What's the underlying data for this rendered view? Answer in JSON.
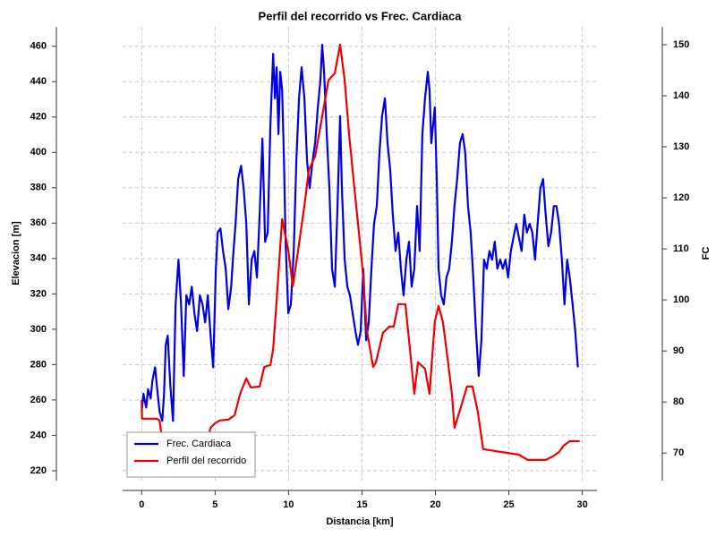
{
  "chart_data": {
    "type": "line",
    "title": "Perfil del recorrido vs Frec. Cardiaca",
    "xlabel": "Distancia [km]",
    "ylabel": "Elevacion [m]",
    "y2label": "FC",
    "xlim": [
      -1.3,
      31
    ],
    "xticks": [
      0,
      5,
      10,
      15,
      20,
      25,
      30
    ],
    "ylim": [
      214.4,
      471
    ],
    "yticks": [
      220,
      240,
      260,
      280,
      300,
      320,
      340,
      360,
      380,
      400,
      420,
      440,
      460
    ],
    "y2lim": [
      64.6,
      153.5
    ],
    "y2ticks": [
      70,
      80,
      90,
      100,
      110,
      120,
      130,
      140,
      150
    ],
    "grid": true,
    "legend": "lower left",
    "series": [
      {
        "name": "Frec. Cardiaca",
        "color": "#0000e0",
        "axis": "y2",
        "x": [
          0,
          0.12,
          0.3,
          0.43,
          0.61,
          0.73,
          0.91,
          1.03,
          1.22,
          1.4,
          1.52,
          1.64,
          1.77,
          1.95,
          2.13,
          2.31,
          2.5,
          2.68,
          2.86,
          3.04,
          3.23,
          3.41,
          3.59,
          3.77,
          3.96,
          4.14,
          4.32,
          4.5,
          4.69,
          4.87,
          5.05,
          5.17,
          5.36,
          5.54,
          5.72,
          5.9,
          6.09,
          6.21,
          6.39,
          6.57,
          6.76,
          6.94,
          7.12,
          7.3,
          7.49,
          7.67,
          7.85,
          8.03,
          8.22,
          8.4,
          8.58,
          8.76,
          8.95,
          9.07,
          9.19,
          9.31,
          9.43,
          9.56,
          9.68,
          9.8,
          9.98,
          10.16,
          10.35,
          10.53,
          10.71,
          10.89,
          11.08,
          11.26,
          11.44,
          11.63,
          11.81,
          11.99,
          12.17,
          12.29,
          12.42,
          12.6,
          12.78,
          12.96,
          13.15,
          13.33,
          13.51,
          13.63,
          13.82,
          14,
          14.18,
          14.36,
          14.55,
          14.73,
          14.91,
          15.09,
          15.28,
          15.46,
          15.64,
          15.82,
          16.01,
          16.19,
          16.37,
          16.56,
          16.74,
          16.92,
          17.1,
          17.29,
          17.47,
          17.65,
          17.83,
          18.02,
          18.2,
          18.38,
          18.56,
          18.75,
          18.93,
          19.11,
          19.29,
          19.48,
          19.6,
          19.72,
          19.84,
          19.96,
          20.09,
          20.21,
          20.39,
          20.57,
          20.75,
          20.94,
          21.12,
          21.3,
          21.48,
          21.67,
          21.85,
          22.03,
          22.22,
          22.4,
          22.58,
          22.76,
          22.95,
          23.13,
          23.31,
          23.49,
          23.68,
          23.86,
          24.04,
          24.22,
          24.41,
          24.59,
          24.77,
          24.95,
          25.14,
          25.32,
          25.5,
          25.68,
          25.87,
          26.05,
          26.23,
          26.42,
          26.6,
          26.78,
          26.96,
          27.15,
          27.33,
          27.51,
          27.69,
          27.88,
          28.06,
          28.24,
          28.42,
          28.61,
          28.79,
          28.97,
          29.15,
          29.34,
          29.52,
          29.7
        ],
        "values": [
          78.1,
          81.6,
          78.9,
          82.5,
          80.7,
          84.2,
          86.8,
          83.3,
          78.1,
          76.3,
          81.6,
          91.2,
          93.0,
          83.3,
          76.3,
          99.1,
          107.9,
          99.1,
          85.1,
          100.9,
          99.1,
          102.6,
          97.4,
          93.9,
          100.9,
          99.1,
          95.6,
          100.9,
          93.0,
          86.8,
          106.1,
          113.2,
          114.0,
          109.6,
          106.1,
          98.2,
          102.6,
          107.9,
          114.9,
          123.7,
          126.3,
          121.9,
          114.9,
          99.1,
          107.9,
          109.6,
          104.4,
          116.7,
          131.6,
          111.4,
          113.2,
          134.2,
          148.2,
          139.5,
          145.6,
          132.5,
          144.7,
          141.2,
          128.1,
          111.4,
          97.4,
          99.1,
          109.6,
          127.2,
          139.5,
          145.6,
          139.5,
          127.2,
          121.9,
          127.2,
          130.7,
          137.7,
          143.0,
          150.0,
          144.7,
          132.5,
          121.9,
          106.1,
          102.6,
          118.4,
          136.0,
          121.9,
          107.9,
          102.6,
          100.9,
          97.4,
          93.9,
          91.2,
          93.9,
          106.1,
          92.1,
          95.6,
          106.1,
          114.9,
          118.4,
          128.9,
          136.0,
          139.5,
          130.7,
          125.4,
          116.7,
          109.6,
          113.2,
          106.1,
          100.9,
          107.9,
          111.4,
          102.6,
          106.1,
          118.4,
          109.6,
          132.5,
          139.5,
          144.7,
          141.2,
          130.7,
          134.2,
          137.7,
          123.7,
          106.1,
          100.9,
          99.1,
          104.4,
          106.1,
          111.4,
          118.4,
          123.7,
          130.7,
          132.5,
          128.9,
          118.4,
          113.2,
          104.4,
          93.9,
          85.1,
          92.1,
          107.9,
          106.1,
          109.6,
          107.9,
          111.4,
          106.1,
          107.9,
          106.1,
          107.9,
          104.4,
          109.6,
          112.3,
          114.9,
          112.3,
          109.6,
          116.7,
          113.2,
          114.9,
          113.2,
          107.9,
          114.9,
          121.9,
          123.7,
          116.7,
          110.5,
          113.2,
          118.4,
          118.4,
          114.9,
          107.9,
          99.1,
          107.9,
          104.4,
          99.1,
          93.9,
          86.8
        ]
      },
      {
        "name": "Perfil del recorrido",
        "color": "#ee0000",
        "x": [
          0,
          0.02,
          1.03,
          1.22,
          1.46,
          2.5,
          4.08,
          4.69,
          4.99,
          5.3,
          5.9,
          6.33,
          6.7,
          7.12,
          7.43,
          8.03,
          8.34,
          8.76,
          8.95,
          9.13,
          9.56,
          9.98,
          10.29,
          10.65,
          11.08,
          11.38,
          11.81,
          12.29,
          12.72,
          13.15,
          13.51,
          13.82,
          14.12,
          14.42,
          14.73,
          15.03,
          15.34,
          15.76,
          15.95,
          16.43,
          16.86,
          17.16,
          17.47,
          17.95,
          18.26,
          18.56,
          18.81,
          19.29,
          19.6,
          19.96,
          20.21,
          20.51,
          20.82,
          21.12,
          21.3,
          21.73,
          22.15,
          22.52,
          22.88,
          23.25,
          24.47,
          25.68,
          26.29,
          27.51,
          28.0,
          28.42,
          28.73,
          29.15,
          29.82
        ],
        "values": [
          260.0,
          249.4,
          249.4,
          248.4,
          233.2,
          222.0,
          223.0,
          244.3,
          246.8,
          248.4,
          248.9,
          251.4,
          263.5,
          272.2,
          267.1,
          267.6,
          278.7,
          279.7,
          288.9,
          309.1,
          362.3,
          344.6,
          324.3,
          344.6,
          369.9,
          390.1,
          397.7,
          420.5,
          440.8,
          444.8,
          461.0,
          440.8,
          410.4,
          385.1,
          359.7,
          334.4,
          299.0,
          278.7,
          281.3,
          298.0,
          301.5,
          301.5,
          314.2,
          314.2,
          288.9,
          263.5,
          281.3,
          277.7,
          263.5,
          304.1,
          313.2,
          304.1,
          283.8,
          263.5,
          244.3,
          255.9,
          267.6,
          267.6,
          253.4,
          232.2,
          230.6,
          229.1,
          226.1,
          226.1,
          228.1,
          230.6,
          234.2,
          236.7,
          236.7
        ]
      }
    ]
  }
}
